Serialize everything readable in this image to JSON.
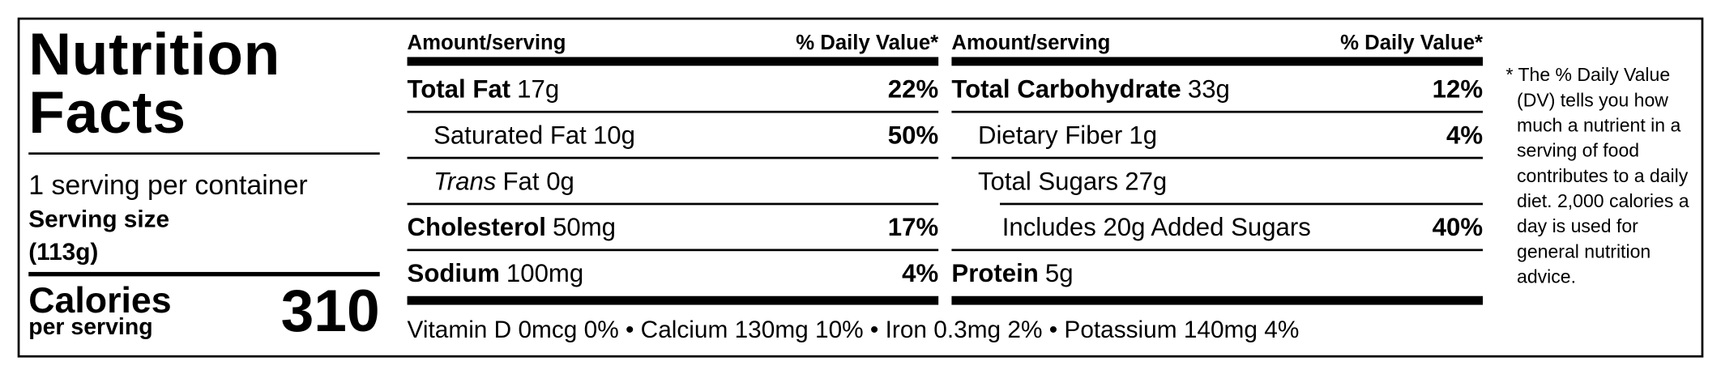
{
  "title": "Nutrition Facts",
  "serving": {
    "per_container": "1 serving per container",
    "size_label": "Serving size",
    "size": "(113g)"
  },
  "calories": {
    "label": "Calories",
    "sublabel": "per serving",
    "value": 310
  },
  "columns": [
    {
      "header": {
        "amount": "Amount/serving",
        "dv": "% Daily Value*"
      },
      "rows": [
        {
          "name": "Total Fat",
          "amount": "17g",
          "dv": "22%",
          "bold": true,
          "indent": 0
        },
        {
          "name": "Saturated Fat",
          "amount": "10g",
          "dv": "50%",
          "bold": false,
          "indent": 1
        },
        {
          "name": "Trans",
          "amount": "Fat 0g",
          "bold": false,
          "italic": true,
          "indent": 1
        },
        {
          "name": "Cholesterol",
          "amount": "50mg",
          "dv": "17%",
          "bold": true,
          "indent": 0
        },
        {
          "name": "Sodium",
          "amount": "100mg",
          "dv": "4%",
          "bold": true,
          "indent": 0
        }
      ]
    },
    {
      "header": {
        "amount": "Amount/serving",
        "dv": "% Daily Value*"
      },
      "rows": [
        {
          "name": "Total Carbohydrate",
          "amount": "33g",
          "dv": "12%",
          "bold": true,
          "indent": 0
        },
        {
          "name": "Dietary Fiber",
          "amount": "1g",
          "dv": "4%",
          "bold": false,
          "indent": 1
        },
        {
          "name": "Total Sugars",
          "amount": "27g",
          "bold": false,
          "indent": 1
        },
        {
          "name": "Includes 20g Added Sugars",
          "dv": "40%",
          "bold": false,
          "indent": 2
        },
        {
          "name": "Protein",
          "amount": "5g",
          "bold": true,
          "indent": 0
        }
      ]
    }
  ],
  "vitamins": "Vitamin D 0mcg 0% • Calcium 130mg 10% • Iron 0.3mg 2% • Potassium 140mg 4%",
  "footnote": "* The % Daily Value (DV) tells you how much a nutrient in a serving of food contributes to a daily diet. 2,000 calories a day is used for general nutrition advice."
}
